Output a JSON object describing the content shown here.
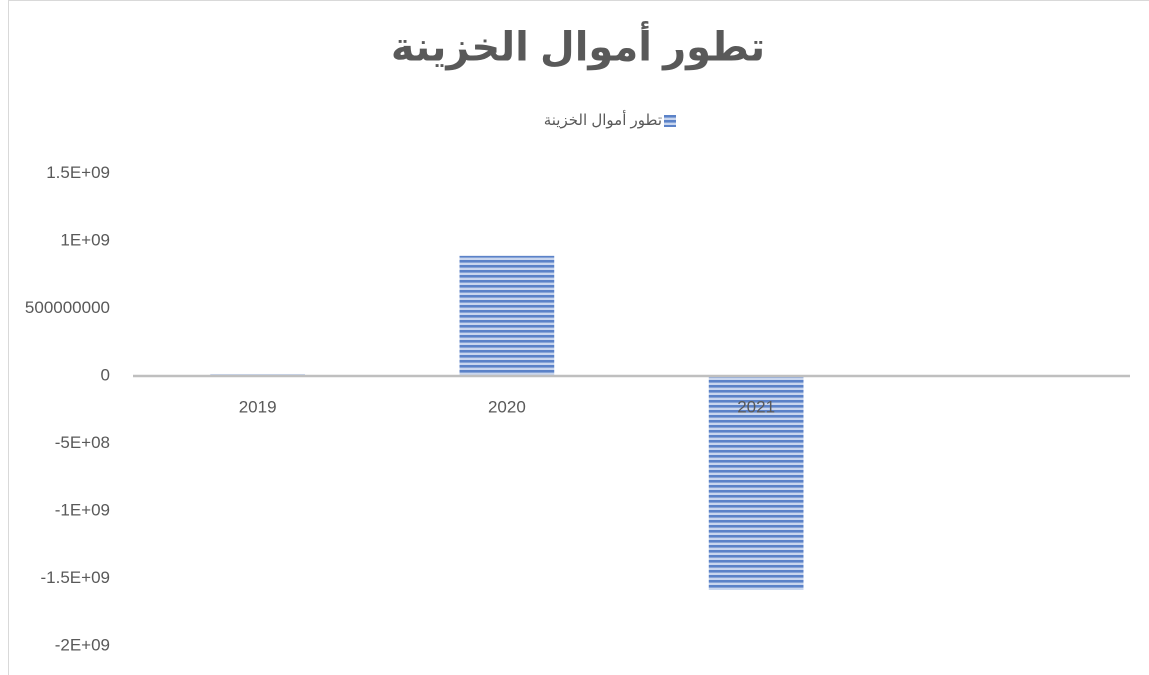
{
  "chart_data": {
    "type": "bar",
    "title": "تطور أموال الخزينة",
    "series": [
      {
        "name": "تطور أموال الخزينة",
        "color": "#4472c4",
        "values": [
          15000000,
          890000000,
          -1585000000,
          null
        ]
      }
    ],
    "categories": [
      "2019",
      "2020",
      "2021",
      null
    ],
    "ylim": [
      -2000000000,
      1500000000
    ],
    "yticks": [
      {
        "value": 1500000000,
        "label": "1.5E+09"
      },
      {
        "value": 1000000000,
        "label": "1E+09"
      },
      500000000,
      0,
      {
        "value": -500000000,
        "label": "-5E+08"
      },
      {
        "value": -1000000000,
        "label": "-1E+09"
      },
      {
        "value": -1500000000,
        "label": "-1.5E+09"
      },
      {
        "value": -2000000000,
        "label": "-2E+09"
      }
    ],
    "grid": false,
    "legend": "top"
  }
}
